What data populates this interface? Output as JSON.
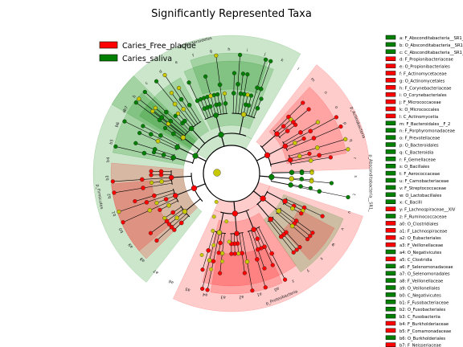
{
  "chart_data": {
    "type": "cladogram",
    "title": "Significantly Represented Taxa",
    "colors": {
      "Caries_Free_plaque": "#ff0000",
      "Caries_saliva": "#008000",
      "neutral": "#c8c800"
    },
    "legend": [
      {
        "name": "Caries_Free_plaque",
        "color": "#ff0000"
      },
      {
        "name": "Caries_saliva",
        "color": "#008000"
      }
    ],
    "clade_labels": [
      {
        "text": "p_Bacteroidetes",
        "group": "Caries_saliva"
      },
      {
        "text": "p_Actinobacteria",
        "group": "Caries_Free_plaque"
      },
      {
        "text": "p_Absconditabacteria__SR1_",
        "group": "Caries_saliva"
      },
      {
        "text": "p_Proteobacteria",
        "group": "Caries_Free_plaque"
      },
      {
        "text": "p_Firmicutes",
        "group": "Caries_saliva"
      }
    ],
    "taxa": [
      {
        "key": "a",
        "name": "F_Absconditabacteria__SR1_",
        "group": "Caries_saliva"
      },
      {
        "key": "b",
        "name": "O_Absconditabacteria__SR1_",
        "group": "Caries_saliva"
      },
      {
        "key": "c",
        "name": "C_Absconditabacteria__SR1_",
        "group": "Caries_saliva"
      },
      {
        "key": "d",
        "name": "F_Propionibacteriaceae",
        "group": "Caries_Free_plaque"
      },
      {
        "key": "e",
        "name": "O_Propionibacteriales",
        "group": "Caries_Free_plaque"
      },
      {
        "key": "f",
        "name": "F_Actinomycetaceae",
        "group": "Caries_Free_plaque"
      },
      {
        "key": "g",
        "name": "O_Actinomycetales",
        "group": "Caries_Free_plaque"
      },
      {
        "key": "h",
        "name": "F_Corynebacteriaceae",
        "group": "Caries_Free_plaque"
      },
      {
        "key": "i",
        "name": "O_Corynebacteriales",
        "group": "Caries_Free_plaque"
      },
      {
        "key": "j",
        "name": "F_Micrococcaceae",
        "group": "Caries_Free_plaque"
      },
      {
        "key": "k",
        "name": "O_Micrococcales",
        "group": "Caries_Free_plaque"
      },
      {
        "key": "l",
        "name": "C_Actinomycetia",
        "group": "Caries_Free_plaque"
      },
      {
        "key": "m",
        "name": "F_Bacteroidales__F_2",
        "group": "Caries_saliva"
      },
      {
        "key": "n",
        "name": "F_Porphyromonadaceae",
        "group": "Caries_saliva"
      },
      {
        "key": "o",
        "name": "F_Prevotellaceae",
        "group": "Caries_saliva"
      },
      {
        "key": "p",
        "name": "O_Bacteroidales",
        "group": "Caries_saliva"
      },
      {
        "key": "q",
        "name": "C_Bacteroidia",
        "group": "Caries_saliva"
      },
      {
        "key": "r",
        "name": "F_Gemellaceae",
        "group": "Caries_saliva"
      },
      {
        "key": "s",
        "name": "O_Bacillales",
        "group": "Caries_saliva"
      },
      {
        "key": "t",
        "name": "F_Aerococcaceae",
        "group": "Caries_saliva"
      },
      {
        "key": "u",
        "name": "F_Carnobacteriaceae",
        "group": "Caries_saliva"
      },
      {
        "key": "v",
        "name": "F_Streptococcaceae",
        "group": "Caries_saliva"
      },
      {
        "key": "w",
        "name": "O_Lactobacillales",
        "group": "Caries_saliva"
      },
      {
        "key": "x",
        "name": "C_Bacilli",
        "group": "Caries_saliva"
      },
      {
        "key": "y",
        "name": "F_Lachnospiraceae__XIV",
        "group": "Caries_Free_plaque"
      },
      {
        "key": "z",
        "name": "F_Ruminococcaceae",
        "group": "Caries_saliva"
      },
      {
        "key": "a0",
        "name": "O_Clostridiales",
        "group": "Caries_Free_plaque"
      },
      {
        "key": "a1",
        "name": "F_Lachnospiraceae",
        "group": "Caries_Free_plaque"
      },
      {
        "key": "a2",
        "name": "O_Eubacteriales",
        "group": "Caries_Free_plaque"
      },
      {
        "key": "a3",
        "name": "F_Veillonellaceae",
        "group": "Caries_Free_plaque"
      },
      {
        "key": "a4",
        "name": "O_Negativicutes",
        "group": "Caries_saliva"
      },
      {
        "key": "a5",
        "name": "C_Clostridia",
        "group": "Caries_Free_plaque"
      },
      {
        "key": "a6",
        "name": "F_Selenomonadaceae",
        "group": "Caries_saliva"
      },
      {
        "key": "a7",
        "name": "O_Selenomonadales",
        "group": "Caries_saliva"
      },
      {
        "key": "a8",
        "name": "F_Veillonellaceae",
        "group": "Caries_saliva"
      },
      {
        "key": "a9",
        "name": "O_Veillonellales",
        "group": "Caries_saliva"
      },
      {
        "key": "b0",
        "name": "C_Negativicutes",
        "group": "Caries_saliva"
      },
      {
        "key": "b1",
        "name": "F_Fusobacteriaceae",
        "group": "Caries_saliva"
      },
      {
        "key": "b2",
        "name": "O_Fusobacteriales",
        "group": "Caries_saliva"
      },
      {
        "key": "b3",
        "name": "C_Fusobacteriia",
        "group": "Caries_saliva"
      },
      {
        "key": "b4",
        "name": "F_Burkholderiaceae",
        "group": "Caries_Free_plaque"
      },
      {
        "key": "b5",
        "name": "F_Comamonadaceae",
        "group": "Caries_Free_plaque"
      },
      {
        "key": "b6",
        "name": "O_Burkholderiales",
        "group": "Caries_saliva"
      },
      {
        "key": "b7",
        "name": "F_Neisseriaceae",
        "group": "Caries_Free_plaque"
      }
    ]
  }
}
